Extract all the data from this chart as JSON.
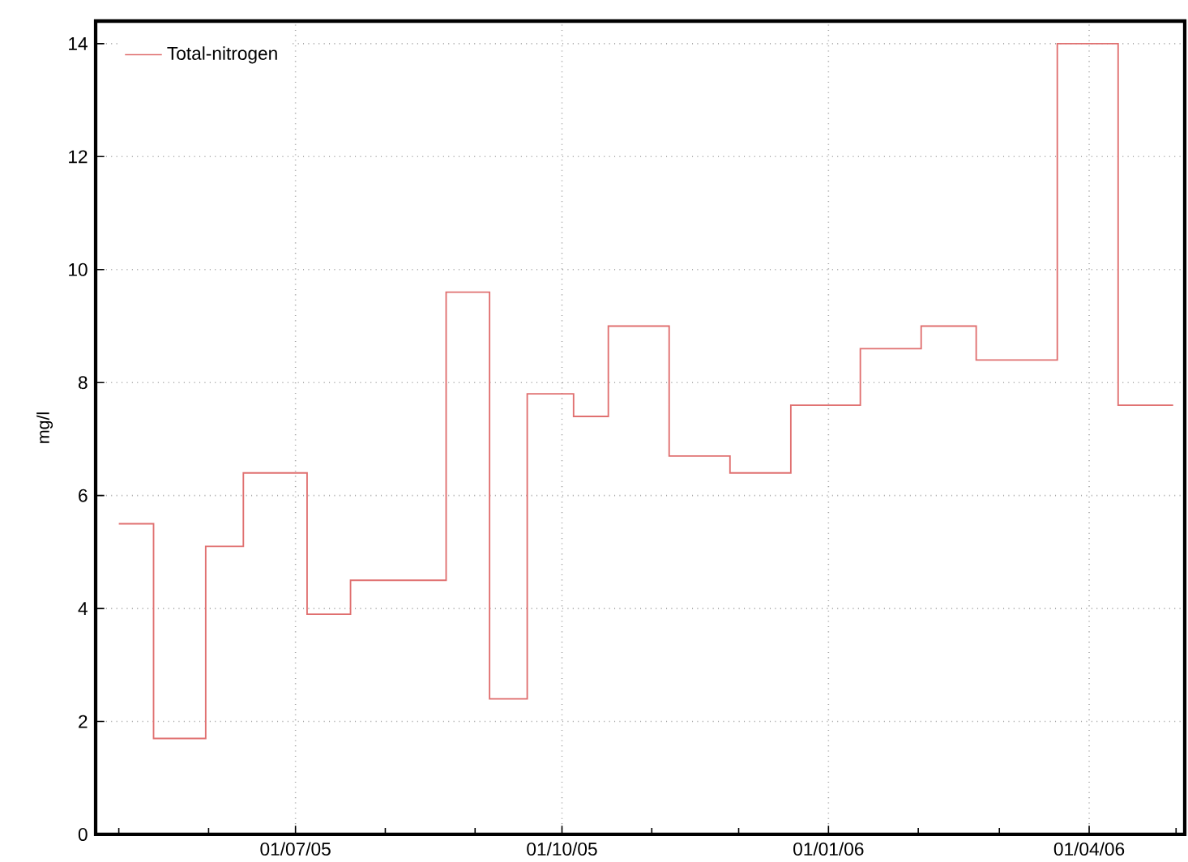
{
  "chart_data": {
    "type": "step",
    "ylabel": "mg/l",
    "x": [
      "2005-05-01",
      "2005-05-13",
      "2005-05-31",
      "2005-06-13",
      "2005-07-05",
      "2005-07-20",
      "2005-08-22",
      "2005-09-06",
      "2005-09-19",
      "2005-10-05",
      "2005-10-17",
      "2005-11-07",
      "2005-11-28",
      "2005-12-19",
      "2006-01-12",
      "2006-02-02",
      "2006-02-21",
      "2006-03-21",
      "2006-04-11",
      "2006-04-30"
    ],
    "series": [
      {
        "name": "Total-nitrogen",
        "color": "#e07070",
        "values": [
          5.5,
          1.7,
          5.1,
          6.4,
          3.9,
          4.5,
          9.6,
          2.4,
          7.8,
          7.4,
          9.0,
          6.7,
          6.4,
          7.6,
          8.6,
          9.0,
          8.4,
          14.0,
          7.6,
          7.6
        ]
      }
    ],
    "xlim": [
      "2005-04-23",
      "2006-05-04"
    ],
    "xticks": [
      {
        "value": "2005-05-01",
        "label": null
      },
      {
        "value": "2005-06-01",
        "label": null
      },
      {
        "value": "2005-07-01",
        "label": "01/07/05"
      },
      {
        "value": "2005-08-01",
        "label": null
      },
      {
        "value": "2005-09-01",
        "label": null
      },
      {
        "value": "2005-10-01",
        "label": "01/10/05"
      },
      {
        "value": "2005-11-01",
        "label": null
      },
      {
        "value": "2005-12-01",
        "label": null
      },
      {
        "value": "2006-01-01",
        "label": "01/01/06"
      },
      {
        "value": "2006-02-01",
        "label": null
      },
      {
        "value": "2006-03-01",
        "label": null
      },
      {
        "value": "2006-04-01",
        "label": "01/04/06"
      },
      {
        "value": "2006-05-01",
        "label": null
      }
    ],
    "ylim": [
      0,
      14.4
    ],
    "yticks": [
      0,
      2,
      4,
      6,
      8,
      10,
      12,
      14
    ],
    "grid": true,
    "legend": "top left",
    "marker": "none",
    "line_style": "solid"
  }
}
